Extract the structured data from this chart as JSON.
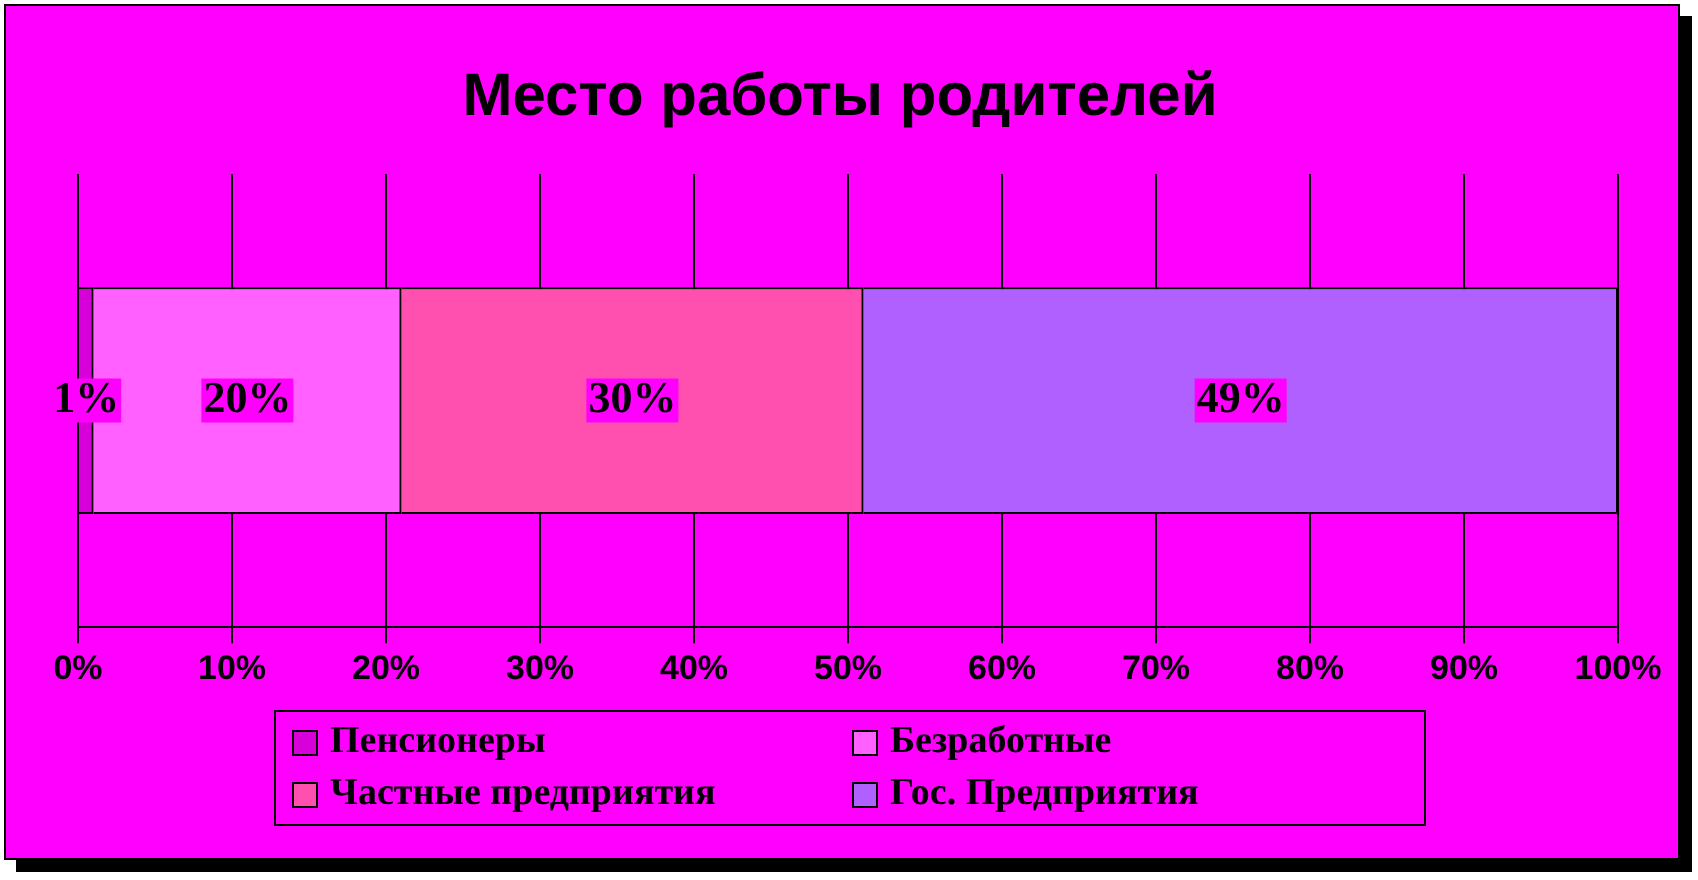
{
  "chart_data": {
    "type": "bar",
    "title": "Место работы родителей",
    "orientation": "horizontal",
    "stacked": true,
    "categories": [
      null
    ],
    "series": [
      {
        "name": "Пенсионеры",
        "color": "#d800d8",
        "values": [
          1
        ],
        "value_labels": [
          "1%"
        ]
      },
      {
        "name": "Безработные",
        "color": "#ff60ff",
        "values": [
          20
        ],
        "value_labels": [
          "20%"
        ]
      },
      {
        "name": "Частные предприятия",
        "color": "#ff50b0",
        "values": [
          30
        ],
        "value_labels": [
          "30%"
        ]
      },
      {
        "name": "Гос. Предприятия",
        "color": "#b060ff",
        "values": [
          49
        ],
        "value_labels": [
          "49%"
        ]
      }
    ],
    "xlim": [
      0,
      100
    ],
    "xticks": [
      {
        "value": 0,
        "label": "0%"
      },
      {
        "value": 10,
        "label": "10%"
      },
      {
        "value": 20,
        "label": "20%"
      },
      {
        "value": 30,
        "label": "30%"
      },
      {
        "value": 40,
        "label": "40%"
      },
      {
        "value": 50,
        "label": "50%"
      },
      {
        "value": 60,
        "label": "60%"
      },
      {
        "value": 70,
        "label": "70%"
      },
      {
        "value": 80,
        "label": "80%"
      },
      {
        "value": 90,
        "label": "90%"
      },
      {
        "value": 100,
        "label": "100%"
      }
    ],
    "grid": "x",
    "legend": "bottom"
  }
}
